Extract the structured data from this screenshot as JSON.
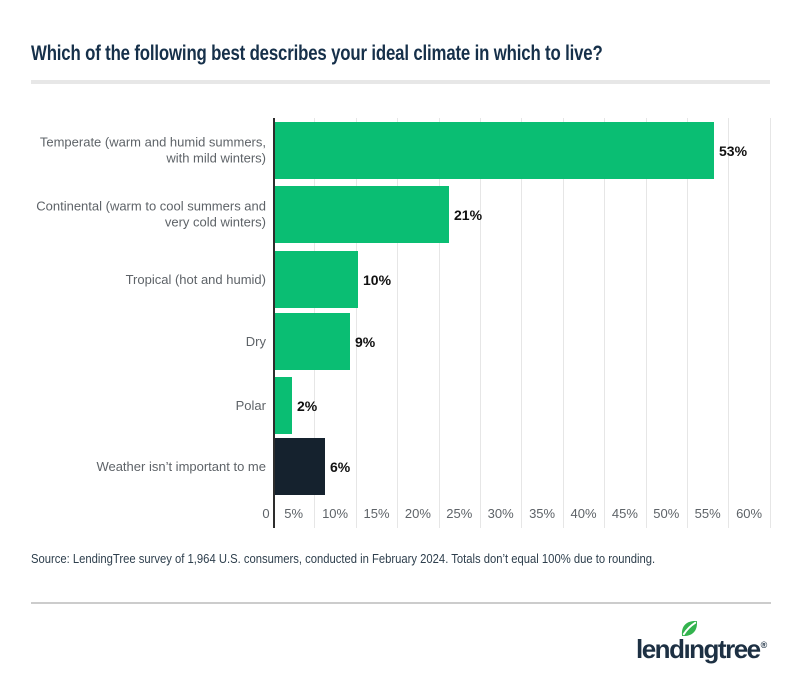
{
  "chart_data": {
    "type": "bar",
    "orientation": "horizontal",
    "title": "Which of the following best describes your ideal climate in which to live?",
    "categories": [
      "Temperate (warm and humid summers,\nwith mild winters)",
      "Continental (warm to cool summers and\nvery cold winters)",
      "Tropical (hot and humid)",
      "Dry",
      "Polar",
      "Weather isn’t important to me"
    ],
    "values": [
      53,
      21,
      10,
      9,
      2,
      6
    ],
    "value_labels": [
      "53%",
      "21%",
      "10%",
      "9%",
      "2%",
      "6%"
    ],
    "bar_colors": [
      "#0ABE73",
      "#0ABE73",
      "#0ABE73",
      "#0ABE73",
      "#0ABE73",
      "#15222E"
    ],
    "x_ticks": [
      {
        "label": "0",
        "value": 0
      },
      {
        "label": "5%",
        "value": 5
      },
      {
        "label": "10%",
        "value": 10
      },
      {
        "label": "15%",
        "value": 15
      },
      {
        "label": "20%",
        "value": 20
      },
      {
        "label": "25%",
        "value": 25
      },
      {
        "label": "30%",
        "value": 30
      },
      {
        "label": "35%",
        "value": 35
      },
      {
        "label": "40%",
        "value": 40
      },
      {
        "label": "45%",
        "value": 45
      },
      {
        "label": "50%",
        "value": 50
      },
      {
        "label": "55%",
        "value": 55
      },
      {
        "label": "60%",
        "value": 60
      }
    ],
    "xlim": [
      0,
      60
    ],
    "unit": "%",
    "grid": true,
    "legend": false
  },
  "footer": {
    "source": "Source: LendingTree survey of 1,964 U.S. consumers, conducted in February 2024. Totals don’t equal 100% due to rounding.",
    "logo": {
      "text": "lendingtree",
      "registered": "®",
      "leaf_color": "#33B34E",
      "text_color": "#1D3043"
    }
  },
  "colors": {
    "accent_green": "#0ABE73",
    "dark_navy": "#15222E",
    "title_text": "#16304A",
    "axis_text": "#5E6368",
    "value_text": "#111111",
    "gridline": "#E6E6E6",
    "axis_line": "#2D2D2D"
  }
}
